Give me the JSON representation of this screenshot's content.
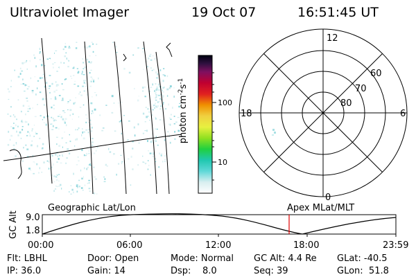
{
  "header": {
    "title": "Ultraviolet Imager",
    "date": "19 Oct 07",
    "time": "16:51:45 UT"
  },
  "colorbar": {
    "label": "photon cm",
    "label_exp1": "-2",
    "label_mid": "s",
    "label_exp2": "-1",
    "ticks": [
      "100",
      "10"
    ]
  },
  "polar_plot": {
    "mlt_labels": {
      "top": "12",
      "left": "18",
      "right": "6",
      "bottom": "0"
    },
    "lat_labels": [
      "60",
      "70",
      "80"
    ]
  },
  "timeline": {
    "left_label": "Geographic Lat/Lon",
    "right_label": "Apex MLat/MLT",
    "y_axis_label": "GC Alt",
    "y_ticks": [
      "9.0",
      "1.8"
    ],
    "x_ticks": [
      "00:00",
      "06:00",
      "12:00",
      "18:00",
      "23:59"
    ],
    "marker_color": "#e00000"
  },
  "footer": {
    "flt": "Flt: LBHL",
    "door": "Door: Open",
    "mode": "Mode: Normal",
    "gc_alt": "GC Alt: 4.4 Re",
    "glat": "GLat: -40.5",
    "ip": "IP: 36.0",
    "gain": "Gain: 14",
    "dsp": "Dsp:    8.0",
    "seq": "Seq: 39",
    "glon": "GLon:  51.8"
  }
}
